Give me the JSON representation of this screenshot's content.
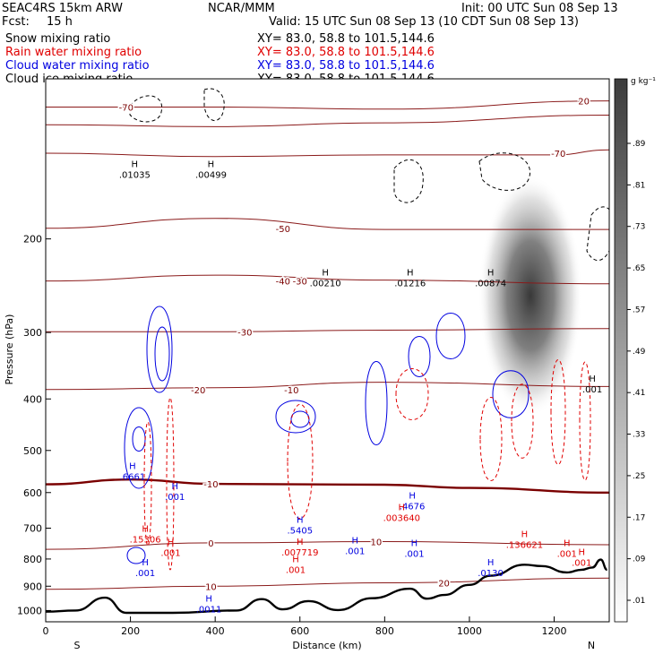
{
  "header": {
    "model": "SEAC4RS 15km ARW",
    "org": "NCAR/MMM",
    "init": "Init: 00 UTC Sun 08 Sep 13",
    "fcst_label": "Fcst:",
    "fcst_value": "15 h",
    "valid": "Valid: 15 UTC Sun 08 Sep 13 (10 CDT Sun 08 Sep 13)",
    "xy_text": "XY= 83.0, 58.8 to 101.5,144.6"
  },
  "legend": [
    {
      "name": "Snow mixing ratio",
      "color": "#000000"
    },
    {
      "name": "Rain water mixing ratio",
      "color": "#e00000"
    },
    {
      "name": "Cloud water mixing ratio",
      "color": "#0000e0"
    },
    {
      "name": "Cloud ice mixing ratio",
      "color": "#000000"
    }
  ],
  "colorbar": {
    "unit": "g kg⁻¹",
    "labels": [
      ".01",
      ".09",
      ".17",
      ".25",
      ".33",
      ".41",
      ".49",
      ".57",
      ".65",
      ".73",
      ".81",
      ".89"
    ]
  },
  "chart_data": {
    "type": "contour",
    "xlabel": "Distance (km)",
    "ylabel": "Pressure (hPa)",
    "xlim": [
      0,
      1330
    ],
    "ylim": [
      1050,
      100
    ],
    "y_scale": "log",
    "x_ticks": [
      0,
      200,
      400,
      600,
      800,
      1000,
      1200
    ],
    "y_ticks": [
      200,
      300,
      400,
      500,
      600,
      700,
      800,
      900,
      1000
    ],
    "x_end_labels": {
      "left": "S",
      "right": "N"
    },
    "temperature_contours": [
      {
        "label": "-70",
        "series": [
          [
            0,
            113
          ],
          [
            400,
            113
          ],
          [
            800,
            114
          ],
          [
            1330,
            110
          ]
        ]
      },
      {
        "label": "-60",
        "series": [
          [
            0,
            122
          ],
          [
            400,
            123
          ],
          [
            800,
            121
          ],
          [
            1330,
            117
          ]
        ]
      },
      {
        "label": "-50",
        "series": [
          [
            0,
            138
          ],
          [
            400,
            140
          ],
          [
            800,
            139
          ],
          [
            1200,
            139
          ],
          [
            1330,
            136
          ]
        ]
      },
      {
        "label": "-40",
        "series": [
          [
            0,
            191
          ],
          [
            400,
            183
          ],
          [
            800,
            192
          ],
          [
            1330,
            192
          ]
        ]
      },
      {
        "label": "-30",
        "series": [
          [
            0,
            240
          ],
          [
            400,
            234
          ],
          [
            800,
            239
          ],
          [
            1330,
            243
          ]
        ]
      },
      {
        "label": "-20",
        "series": [
          [
            0,
            299
          ],
          [
            400,
            299
          ],
          [
            800,
            297
          ],
          [
            1330,
            295
          ]
        ]
      },
      {
        "label": "-10",
        "series": [
          [
            0,
            384
          ],
          [
            400,
            381
          ],
          [
            800,
            372
          ],
          [
            1330,
            379
          ]
        ]
      },
      {
        "label": "0",
        "series": [
          [
            0,
            579
          ],
          [
            200,
            567
          ],
          [
            400,
            578
          ],
          [
            800,
            580
          ],
          [
            1000,
            588
          ],
          [
            1330,
            600
          ]
        ]
      },
      {
        "label": "10",
        "series": [
          [
            0,
            767
          ],
          [
            400,
            746
          ],
          [
            800,
            742
          ],
          [
            1330,
            752
          ]
        ]
      },
      {
        "label": "20",
        "series": [
          [
            0,
            912
          ],
          [
            400,
            900
          ],
          [
            800,
            887
          ],
          [
            1330,
            869
          ]
        ]
      }
    ],
    "temperature_labels": [
      "-70",
      "-70",
      "-50",
      "-40",
      "-30",
      "-30",
      "-20",
      "-10",
      "-10",
      "0",
      "10",
      "10",
      "20",
      "20"
    ],
    "terrain": {
      "name": "terrain",
      "series": [
        [
          0,
          1005
        ],
        [
          70,
          1000
        ],
        [
          140,
          946
        ],
        [
          190,
          1010
        ],
        [
          300,
          1010
        ],
        [
          450,
          1000
        ],
        [
          510,
          952
        ],
        [
          560,
          995
        ],
        [
          620,
          960
        ],
        [
          690,
          998
        ],
        [
          770,
          948
        ],
        [
          860,
          910
        ],
        [
          900,
          950
        ],
        [
          940,
          935
        ],
        [
          1000,
          895
        ],
        [
          1050,
          860
        ],
        [
          1130,
          820
        ],
        [
          1170,
          825
        ],
        [
          1230,
          848
        ],
        [
          1265,
          838
        ],
        [
          1290,
          830
        ],
        [
          1310,
          802
        ],
        [
          1325,
          838
        ]
      ]
    },
    "markers": [
      {
        "type": "H",
        "label": ".01035",
        "series": "cloud_ice",
        "at": [
          210,
          150
        ]
      },
      {
        "type": "H",
        "label": ".00499",
        "series": "cloud_ice",
        "at": [
          390,
          150
        ]
      },
      {
        "type": "H",
        "label": ".00210",
        "series": "snow",
        "at": [
          660,
          240
        ]
      },
      {
        "type": "H",
        "label": ".01216",
        "series": "snow",
        "at": [
          860,
          240
        ]
      },
      {
        "type": "H",
        "label": ".00874",
        "series": "snow",
        "at": [
          1050,
          240
        ]
      },
      {
        "type": "H",
        "label": ".001",
        "series": "snow",
        "at": [
          1290,
          380
        ]
      },
      {
        "type": "H",
        "label": ".6661",
        "series": "cloud_water",
        "at": [
          205,
          555
        ]
      },
      {
        "type": "H",
        "label": ".001",
        "series": "cloud_water",
        "at": [
          305,
          605
        ]
      },
      {
        "type": "H",
        "label": ".15306",
        "series": "rain",
        "at": [
          235,
          727
        ]
      },
      {
        "type": "H",
        "label": ".001",
        "series": "rain",
        "at": [
          295,
          772
        ]
      },
      {
        "type": "H",
        "label": ".001",
        "series": "cloud_water",
        "at": [
          235,
          842
        ]
      },
      {
        "type": "H",
        "label": ".5405",
        "series": "cloud_water",
        "at": [
          600,
          700
        ]
      },
      {
        "type": "H",
        "label": ".007719",
        "series": "rain",
        "at": [
          600,
          770
        ]
      },
      {
        "type": "H",
        "label": ".001",
        "series": "rain",
        "at": [
          590,
          830
        ]
      },
      {
        "type": "H",
        "label": ".001",
        "series": "cloud_water",
        "at": [
          730,
          765
        ]
      },
      {
        "type": "H",
        "label": ".001",
        "series": "cloud_water",
        "at": [
          870,
          775
        ]
      },
      {
        "type": "H",
        "label": ".4676",
        "series": "cloud_water",
        "at": [
          865,
          630
        ]
      },
      {
        "type": "H",
        "label": ".003640",
        "series": "rain",
        "at": [
          840,
          663
        ]
      },
      {
        "type": "H",
        "label": ".136621",
        "series": "rain",
        "at": [
          1130,
          745
        ]
      },
      {
        "type": "H",
        "label": ".001",
        "series": "rain",
        "at": [
          1230,
          775
        ]
      },
      {
        "type": "H",
        "label": ".001",
        "series": "rain",
        "at": [
          1265,
          805
        ]
      },
      {
        "type": "H",
        "label": ".0130",
        "series": "cloud_water",
        "at": [
          1050,
          842
        ]
      },
      {
        "type": "H",
        "label": ".0011",
        "series": "cloud_water",
        "at": [
          385,
          985
        ]
      }
    ],
    "snow_shading": {
      "center": [
        1110,
        470
      ],
      "max": 0.89,
      "extent_p": [
        290,
        640
      ]
    }
  }
}
